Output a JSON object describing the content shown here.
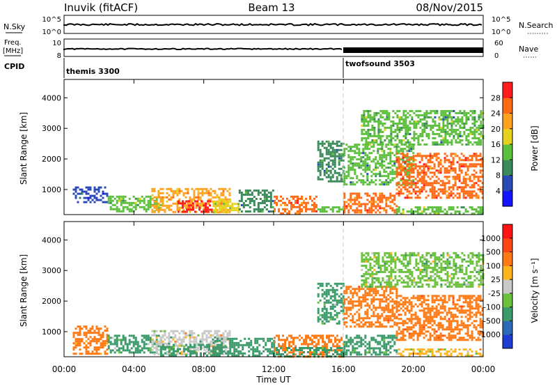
{
  "header": {
    "station": "Inuvik (fitACF)",
    "beam": "Beam 13",
    "date": "08/Nov/2015"
  },
  "aux_panels": {
    "nsky_label": "N.Sky",
    "nsky_ticks": [
      "10^5",
      "10^0"
    ],
    "nsearch_label": "N.Search",
    "nsearch_ticks": [
      "10^5",
      "10^0"
    ],
    "freq_label_line1": "Freq.",
    "freq_label_line2": "[MHz]",
    "freq_ticks": [
      "10",
      "8"
    ],
    "nave_label": "Nave",
    "nave_ticks": [
      "60",
      "0"
    ],
    "cpid_label": "CPID",
    "cpid_segments": [
      {
        "name": "themis 3300",
        "start_hour": 0,
        "end_hour": 16
      },
      {
        "name": "twofsound 3503",
        "start_hour": 16,
        "end_hour": 24
      }
    ]
  },
  "x_axis": {
    "label": "Time UT",
    "ticks": [
      "00:00",
      "04:00",
      "08:00",
      "12:00",
      "16:00",
      "20:00",
      "00:00"
    ],
    "tick_hours": [
      0,
      4,
      8,
      12,
      16,
      20,
      24
    ]
  },
  "colorbars": {
    "power": {
      "label": "Power [dB]",
      "tick_labels": [
        "4",
        "8",
        "12",
        "16",
        "20",
        "24",
        "28"
      ],
      "colors": [
        "#1414ff",
        "#2a4ab8",
        "#3a8a5a",
        "#5cbf3c",
        "#e6d21e",
        "#ffa31e",
        "#ff6a14",
        "#ff1e1e"
      ]
    },
    "velocity": {
      "label": "Velocity [m s⁻¹]",
      "tick_labels": [
        "1000",
        "500",
        "100",
        "25",
        "-25",
        "-100",
        "-500",
        "-1000"
      ],
      "colors": [
        "#1c3cd2",
        "#2a6ab8",
        "#3a9a6a",
        "#6ac23c",
        "#c8c8c8",
        "#ffb41e",
        "#ff7a14",
        "#ff4614",
        "#ff1414"
      ]
    }
  },
  "chart_data": [
    {
      "type": "heatmap",
      "panel": "power",
      "title": "",
      "xlabel": "",
      "ylabel": "Slant Range [km]",
      "x_range_hours": [
        0,
        24
      ],
      "ylim": [
        180,
        4600
      ],
      "y_ticks": [
        "1000",
        "2000",
        "3000",
        "4000"
      ],
      "y_tick_values": [
        1000,
        2000,
        3000,
        4000
      ],
      "value_unit": "dB",
      "blobs": [
        {
          "t0": 0.5,
          "t1": 2.5,
          "r0": 600,
          "r1": 1100,
          "v": 6
        },
        {
          "t0": 2.5,
          "t1": 5.5,
          "r0": 300,
          "r1": 800,
          "v": 14
        },
        {
          "t0": 5.0,
          "t1": 9.5,
          "r0": 250,
          "r1": 1050,
          "v": 22
        },
        {
          "t0": 6.5,
          "t1": 8.5,
          "r0": 250,
          "r1": 650,
          "v": 28
        },
        {
          "t0": 8.5,
          "t1": 10.0,
          "r0": 250,
          "r1": 700,
          "v": 18
        },
        {
          "t0": 10.0,
          "t1": 12.0,
          "r0": 250,
          "r1": 1000,
          "v": 10
        },
        {
          "t0": 12.0,
          "t1": 14.5,
          "r0": 250,
          "r1": 800,
          "v": 26
        },
        {
          "t0": 14.5,
          "t1": 16.0,
          "r0": 250,
          "r1": 450,
          "v": 14
        },
        {
          "t0": 14.5,
          "t1": 16.0,
          "r0": 1300,
          "r1": 2600,
          "v": 10
        },
        {
          "t0": 16.0,
          "t1": 19.0,
          "r0": 250,
          "r1": 900,
          "v": 26
        },
        {
          "t0": 16.0,
          "t1": 20.0,
          "r0": 1200,
          "r1": 2500,
          "v": 12
        },
        {
          "t0": 17.0,
          "t1": 24.0,
          "r0": 2500,
          "r1": 3600,
          "v": 12
        },
        {
          "t0": 19.0,
          "t1": 24.0,
          "r0": 750,
          "r1": 2200,
          "v": 26
        },
        {
          "t0": 19.0,
          "t1": 24.0,
          "r0": 200,
          "r1": 450,
          "v": 14
        }
      ]
    },
    {
      "type": "heatmap",
      "panel": "velocity",
      "title": "",
      "xlabel": "Time UT",
      "ylabel": "Slant Range [km]",
      "x_range_hours": [
        0,
        24
      ],
      "ylim": [
        180,
        4600
      ],
      "y_ticks": [
        "1000",
        "2000",
        "3000",
        "4000"
      ],
      "y_tick_values": [
        1000,
        2000,
        3000,
        4000
      ],
      "value_unit": "m/s",
      "blobs": [
        {
          "t0": 0.5,
          "t1": 2.5,
          "r0": 250,
          "r1": 1200,
          "v": -200
        },
        {
          "t0": 2.5,
          "t1": 5.5,
          "r0": 300,
          "r1": 900,
          "v": 150
        },
        {
          "t0": 5.0,
          "t1": 9.5,
          "r0": 250,
          "r1": 1050,
          "v": 0
        },
        {
          "t0": 5.5,
          "t1": 9.0,
          "r0": 200,
          "r1": 600,
          "v": 150
        },
        {
          "t0": 8.5,
          "t1": 12.0,
          "r0": 200,
          "r1": 800,
          "v": 300
        },
        {
          "t0": 12.0,
          "t1": 16.0,
          "r0": 200,
          "r1": 900,
          "v": -300
        },
        {
          "t0": 12.0,
          "t1": 16.0,
          "r0": 200,
          "r1": 500,
          "v": 200
        },
        {
          "t0": 14.5,
          "t1": 16.0,
          "r0": 1300,
          "r1": 2600,
          "v": 150
        },
        {
          "t0": 16.0,
          "t1": 19.0,
          "r0": 250,
          "r1": 900,
          "v": 200
        },
        {
          "t0": 16.0,
          "t1": 19.0,
          "r0": 1200,
          "r1": 2500,
          "v": -400
        },
        {
          "t0": 17.0,
          "t1": 24.0,
          "r0": 2500,
          "r1": 3600,
          "v": 50
        },
        {
          "t0": 19.0,
          "t1": 24.0,
          "r0": 750,
          "r1": 2200,
          "v": -400
        },
        {
          "t0": 19.0,
          "t1": 24.0,
          "r0": 200,
          "r1": 450,
          "v": -60
        }
      ]
    }
  ]
}
